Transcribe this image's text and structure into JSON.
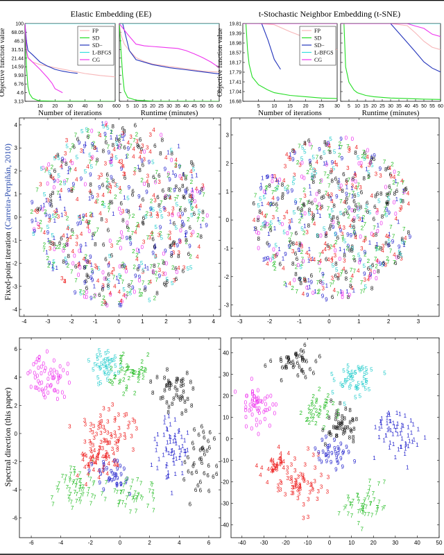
{
  "headers": {
    "left": "Elastic Embedding (EE)",
    "right": "t-Stochastic Neighbor Embedding (t-SNE)"
  },
  "row_labels": {
    "row2": "Fixed-point iteration",
    "row2_cite": "(Carreira-Perpiñán, 2010)",
    "row3": "Spectral direction (this paper)"
  },
  "colors": {
    "FP": "#f7b6b8",
    "SD": "#22dd22",
    "SD-": "#2233bb",
    "L-BFGS": "#33dddd",
    "CG": "#ee33ee",
    "digits": {
      "0": "#ee33ee",
      "1": "#2222cc",
      "2": "#22bb22",
      "3": "#ee2222",
      "4": "#ee2222",
      "5": "#22cccc",
      "6": "#111111",
      "7": "#22bb22",
      "8": "#111111",
      "9": "#2222cc"
    }
  },
  "chart_data": [
    {
      "id": "ee_iter",
      "type": "line",
      "ylabel": "Objective function value",
      "xlabel": "Number of iterations",
      "xlim": [
        0,
        60
      ],
      "ylim": [
        3.13,
        100
      ],
      "xticks": [
        10,
        20,
        30,
        40,
        50,
        60
      ],
      "yticklabels": [
        "100",
        "68.05",
        "46.3",
        "31.51",
        "21.44",
        "14.59",
        "9.93",
        "6.76",
        "4.6",
        "3.13"
      ],
      "legend": [
        "FP",
        "SD",
        "SD−",
        "L-BFGS",
        "CG"
      ],
      "legend_position": "top-right",
      "series": [
        {
          "name": "FP",
          "x": [
            0,
            1,
            2,
            3,
            5,
            10,
            20,
            30,
            40,
            50,
            60
          ],
          "y": [
            100,
            30,
            22,
            20,
            18,
            16,
            14,
            12.3,
            10.8,
            9.9,
            9.3
          ]
        },
        {
          "name": "SD",
          "x": [
            0,
            1,
            2,
            3,
            5,
            8,
            10,
            20,
            40,
            60
          ],
          "y": [
            100,
            14,
            6,
            4.4,
            3.6,
            3.3,
            3.2,
            3.15,
            3.14,
            3.13
          ]
        },
        {
          "name": "SD-",
          "x": [
            0,
            1,
            2,
            5,
            10,
            15,
            20,
            25,
            30,
            35
          ],
          "y": [
            100,
            45,
            30,
            25,
            18,
            15,
            13,
            12,
            11.3,
            10.9
          ]
        },
        {
          "name": "L-BFGS",
          "x": [
            0,
            2,
            4,
            5,
            10,
            20,
            40,
            60
          ],
          "y": [
            100,
            100,
            100,
            100,
            100,
            100,
            100,
            100
          ]
        },
        {
          "name": "CG",
          "x": [
            0,
            1,
            2,
            5,
            10,
            15,
            18,
            20,
            25
          ],
          "y": [
            100,
            30,
            22,
            18,
            13,
            9,
            7,
            5.5,
            4.6
          ]
        }
      ]
    },
    {
      "id": "ee_time",
      "type": "line",
      "xlabel": "Runtime (minutes)",
      "xlim": [
        0,
        60
      ],
      "ylim": [
        3.13,
        100
      ],
      "xticks": [
        0,
        5,
        10,
        15,
        20,
        25,
        30,
        35,
        40,
        45,
        50,
        55,
        60
      ],
      "series": [
        {
          "name": "FP",
          "x": [
            0,
            1,
            3,
            6,
            10,
            15,
            20,
            30,
            40,
            50,
            60
          ],
          "y": [
            100,
            60,
            40,
            30,
            22,
            18.5,
            16.5,
            14.8,
            13.3,
            12,
            11.5
          ]
        },
        {
          "name": "SD",
          "x": [
            0,
            1,
            2,
            3,
            5,
            10,
            20,
            60
          ],
          "y": [
            100,
            30,
            10,
            5,
            3.7,
            3.3,
            3.15,
            3.13
          ]
        },
        {
          "name": "SD-",
          "x": [
            0,
            2,
            4,
            6,
            10,
            20,
            30,
            40,
            50,
            60
          ],
          "y": [
            100,
            100,
            55,
            30,
            20,
            16,
            14,
            12.8,
            11.6,
            10.6
          ]
        },
        {
          "name": "L-BFGS",
          "x": [
            0,
            10,
            20,
            30,
            40,
            50,
            60
          ],
          "y": [
            100,
            100,
            100,
            100,
            100,
            100,
            100
          ]
        },
        {
          "name": "CG",
          "x": [
            0,
            5,
            10,
            15,
            20,
            25,
            30,
            35,
            40,
            45,
            50,
            55,
            60
          ],
          "y": [
            100,
            62,
            40,
            37,
            36,
            35,
            34,
            33,
            30,
            26,
            22,
            18,
            14
          ]
        }
      ]
    },
    {
      "id": "tsne_iter",
      "type": "line",
      "ylabel": "Objective function value",
      "xlabel": "Number of iterations",
      "xlim": [
        0,
        30
      ],
      "ylim": [
        16.68,
        19.81
      ],
      "xticks": [
        5,
        10,
        15,
        20,
        25,
        30
      ],
      "yticklabels": [
        "19.81",
        "19.39",
        "18.98",
        "18.57",
        "18.17",
        "17.79",
        "17.41",
        "17.04",
        "16.68"
      ],
      "legend": [
        "FP",
        "SD",
        "SD−",
        "L-BFGS",
        "CG"
      ],
      "legend_position": "top-right",
      "series": [
        {
          "name": "FP",
          "x": [
            0,
            5,
            10,
            15,
            20,
            25,
            30
          ],
          "y": [
            19.81,
            19.81,
            19.76,
            19.46,
            19.2,
            18.95,
            18.7
          ]
        },
        {
          "name": "SD",
          "x": [
            0,
            1,
            1.5,
            2,
            3,
            5,
            8,
            10,
            15,
            20,
            25,
            30
          ],
          "y": [
            19.81,
            19.81,
            18.7,
            18.1,
            17.6,
            17.3,
            17.1,
            17.0,
            16.9,
            16.85,
            16.8,
            16.78
          ]
        },
        {
          "name": "SD-",
          "x": [
            0,
            6,
            8,
            10,
            12
          ],
          "y": [
            19.81,
            19.81,
            19.1,
            18.3,
            17.9
          ]
        },
        {
          "name": "L-BFGS",
          "x": [
            0,
            10,
            20,
            30
          ],
          "y": [
            19.81,
            19.81,
            19.81,
            19.81
          ]
        },
        {
          "name": "CG",
          "x": [
            0,
            10,
            20,
            30
          ],
          "y": [
            19.81,
            19.81,
            19.81,
            19.81
          ]
        }
      ]
    },
    {
      "id": "tsne_time",
      "type": "line",
      "xlabel": "Runtime (minutes)",
      "xlim": [
        0,
        60
      ],
      "ylim": [
        16.68,
        19.81
      ],
      "xticks": [
        5,
        10,
        15,
        20,
        25,
        30,
        35,
        40,
        45,
        50,
        55,
        60
      ],
      "series": [
        {
          "name": "FP",
          "x": [
            0,
            30,
            40,
            45,
            50,
            55,
            60
          ],
          "y": [
            19.81,
            19.81,
            19.72,
            19.4,
            19.05,
            18.8,
            18.7
          ]
        },
        {
          "name": "SD",
          "x": [
            0,
            2,
            3,
            5,
            8,
            10,
            15,
            20,
            30,
            40,
            50,
            60
          ],
          "y": [
            19.81,
            19.81,
            18.0,
            17.4,
            17.1,
            17.0,
            16.9,
            16.85,
            16.8,
            16.78,
            16.76,
            16.75
          ]
        },
        {
          "name": "SD-",
          "x": [
            0,
            30,
            35,
            40,
            45,
            50,
            55,
            60
          ],
          "y": [
            19.81,
            19.81,
            19.4,
            19.0,
            18.6,
            18.2,
            17.95,
            17.8
          ]
        },
        {
          "name": "L-BFGS",
          "x": [
            0,
            20,
            40,
            60
          ],
          "y": [
            19.81,
            19.81,
            19.81,
            19.81
          ]
        },
        {
          "name": "CG",
          "x": [
            0,
            40,
            45,
            50,
            55,
            60
          ],
          "y": [
            19.81,
            19.81,
            19.7,
            19.6,
            19.35,
            19.25
          ]
        }
      ]
    },
    {
      "id": "ee_fp",
      "type": "scatter",
      "xlim": [
        -4.2,
        4.3
      ],
      "ylim": [
        -4.3,
        4.3
      ],
      "xticks": [
        -4,
        -3,
        -2,
        -1,
        0,
        1,
        2,
        3,
        4
      ],
      "yticks": [
        -4,
        -3,
        -2,
        -1,
        0,
        1,
        2,
        3,
        4
      ],
      "layout": "blob",
      "cx": 0,
      "cy": 0.05,
      "rx": 3.75,
      "ry": 4.0,
      "n": 720,
      "seed": 11,
      "note": "digits 0-9 mixed uniformly"
    },
    {
      "id": "tsne_fp",
      "type": "scatter",
      "xlim": [
        -3.3,
        3.7
      ],
      "ylim": [
        -3.4,
        3.6
      ],
      "xticks": [
        -3,
        -2,
        -1,
        0,
        1,
        2,
        3
      ],
      "yticks": [
        -3,
        -2,
        -1,
        0,
        1,
        2,
        3
      ],
      "layout": "blob",
      "cx": 0.1,
      "cy": 0.0,
      "rx": 2.7,
      "ry": 2.9,
      "n": 650,
      "seed": 23,
      "note": "partially clustered digits"
    },
    {
      "id": "ee_sd",
      "type": "scatter",
      "xlim": [
        -6.8,
        6.8
      ],
      "ylim": [
        -7.4,
        6.8
      ],
      "xticks": [
        -6,
        -4,
        -2,
        0,
        2,
        4,
        6
      ],
      "yticks": [
        -6,
        -4,
        -2,
        0,
        2,
        4,
        6
      ],
      "layout": "clusters",
      "seed": 37,
      "clusters": [
        {
          "digit": "0",
          "cx": -4.8,
          "cy": 3.8,
          "sx": 1.0,
          "sy": 1.3,
          "n": 60
        },
        {
          "digit": "5",
          "cx": -1.0,
          "cy": 4.8,
          "sx": 1.0,
          "sy": 1.0,
          "n": 40
        },
        {
          "digit": "8",
          "cx": 3.5,
          "cy": 3.0,
          "sx": 1.0,
          "sy": 1.5,
          "n": 45
        },
        {
          "digit": "2",
          "cx": 0.5,
          "cy": 4.2,
          "sx": 1.1,
          "sy": 1.2,
          "n": 45
        },
        {
          "digit": "3",
          "cx": -0.8,
          "cy": 0.0,
          "sx": 1.4,
          "sy": 1.5,
          "n": 70
        },
        {
          "digit": "1",
          "cx": 3.5,
          "cy": -1.0,
          "sx": 1.0,
          "sy": 2.0,
          "n": 60
        },
        {
          "digit": "6",
          "cx": 5.5,
          "cy": -2.0,
          "sx": 0.9,
          "sy": 1.8,
          "n": 40
        },
        {
          "digit": "7",
          "cx": -2.8,
          "cy": -3.8,
          "sx": 1.4,
          "sy": 1.3,
          "n": 55
        },
        {
          "digit": "4",
          "cx": -1.5,
          "cy": -2.0,
          "sx": 1.2,
          "sy": 1.0,
          "n": 45
        },
        {
          "digit": "9",
          "cx": -0.5,
          "cy": -3.2,
          "sx": 1.1,
          "sy": 1.0,
          "n": 35
        },
        {
          "digit": "7",
          "cx": 1.0,
          "cy": -4.5,
          "sx": 1.3,
          "sy": 1.1,
          "n": 40
        }
      ]
    },
    {
      "id": "tsne_sd",
      "type": "scatter",
      "xlim": [
        -45,
        50
      ],
      "ylim": [
        -46,
        47
      ],
      "xticks": [
        -40,
        -30,
        -20,
        -10,
        0,
        10,
        20,
        30,
        40,
        50
      ],
      "yticks": [
        -40,
        -30,
        -20,
        -10,
        0,
        10,
        20,
        30,
        40
      ],
      "layout": "clusters",
      "seed": 53,
      "clusters": [
        {
          "digit": "6",
          "cx": -15,
          "cy": 35,
          "sx": 9,
          "sy": 6,
          "n": 45
        },
        {
          "digit": "0",
          "cx": -33,
          "cy": 15,
          "sx": 7,
          "sy": 8,
          "n": 55
        },
        {
          "digit": "5",
          "cx": 12,
          "cy": 25,
          "sx": 8,
          "sy": 9,
          "n": 50
        },
        {
          "digit": "8",
          "cx": 5,
          "cy": 5,
          "sx": 8,
          "sy": 8,
          "n": 45
        },
        {
          "digit": "2",
          "cx": -5,
          "cy": 12,
          "sx": 7,
          "sy": 7,
          "n": 35
        },
        {
          "digit": "1",
          "cx": 32,
          "cy": 2,
          "sx": 10,
          "sy": 9,
          "n": 60
        },
        {
          "digit": "3",
          "cx": -12,
          "cy": -22,
          "sx": 11,
          "sy": 10,
          "n": 65
        },
        {
          "digit": "9",
          "cx": 2,
          "cy": -8,
          "sx": 8,
          "sy": 6,
          "n": 35
        },
        {
          "digit": "7",
          "cx": 15,
          "cy": -32,
          "sx": 9,
          "sy": 7,
          "n": 50
        },
        {
          "digit": "4",
          "cx": -25,
          "cy": -12,
          "sx": 6,
          "sy": 6,
          "n": 30
        }
      ]
    }
  ]
}
